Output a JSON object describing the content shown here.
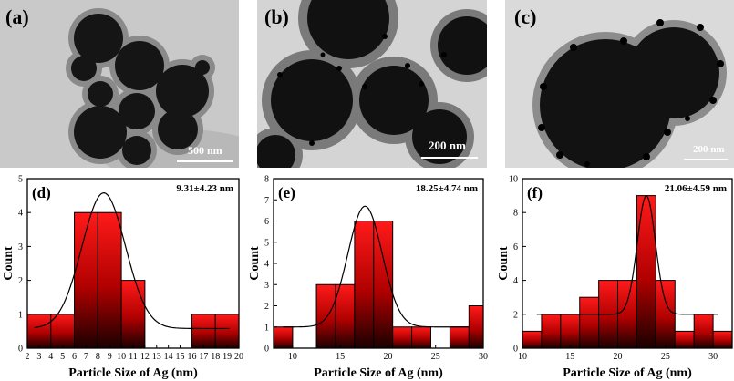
{
  "tem_panels": [
    {
      "label": "(a)",
      "scale": "500 nm"
    },
    {
      "label": "(b)",
      "scale": "200 nm"
    },
    {
      "label": "(c)",
      "scale": "200 nm"
    }
  ],
  "chart_data": [
    {
      "type": "bar",
      "panel_label": "(d)",
      "annotation": "9.31±4.23 nm",
      "xlabel": "Particle Size of Ag (nm)",
      "ylabel": "Count",
      "xlim": [
        2,
        20
      ],
      "ylim": [
        0,
        5
      ],
      "xticks": [
        2,
        3,
        4,
        5,
        6,
        7,
        8,
        9,
        10,
        11,
        12,
        13,
        14,
        15,
        16,
        17,
        18,
        19,
        20
      ],
      "yticks": [
        0,
        1,
        2,
        3,
        4,
        5
      ],
      "bars": [
        {
          "x0": 2,
          "x1": 4,
          "value": 1
        },
        {
          "x0": 4,
          "x1": 6,
          "value": 1
        },
        {
          "x0": 6,
          "x1": 8,
          "value": 4
        },
        {
          "x0": 8,
          "x1": 10,
          "value": 4
        },
        {
          "x0": 10,
          "x1": 12,
          "value": 2
        },
        {
          "x0": 16,
          "x1": 18,
          "value": 1
        },
        {
          "x0": 18,
          "x1": 20,
          "value": 1
        }
      ],
      "fit": {
        "mean": 8.5,
        "sigma": 1.85,
        "amplitude": 4.0,
        "baseline": 0.58,
        "x_start": 2.6,
        "x_end": 19.2
      }
    },
    {
      "type": "bar",
      "panel_label": "(e)",
      "annotation": "18.25±4.74 nm",
      "xlabel": "Particle Size of Ag (nm)",
      "ylabel": "Count",
      "xlim": [
        8,
        30
      ],
      "ylim": [
        0,
        8
      ],
      "xticks": [
        10,
        15,
        20,
        25,
        30
      ],
      "yticks": [
        0,
        1,
        2,
        3,
        4,
        5,
        6,
        7,
        8
      ],
      "bars": [
        {
          "x0": 8,
          "x1": 10,
          "value": 1
        },
        {
          "x0": 12.5,
          "x1": 14.5,
          "value": 3
        },
        {
          "x0": 14.5,
          "x1": 16.5,
          "value": 3
        },
        {
          "x0": 16.5,
          "x1": 18.5,
          "value": 6
        },
        {
          "x0": 18.5,
          "x1": 20.5,
          "value": 6
        },
        {
          "x0": 20.5,
          "x1": 22.5,
          "value": 1
        },
        {
          "x0": 22.5,
          "x1": 24.5,
          "value": 1
        },
        {
          "x0": 26.5,
          "x1": 28.5,
          "value": 1
        },
        {
          "x0": 28.5,
          "x1": 30,
          "value": 2
        }
      ],
      "fit": {
        "mean": 17.6,
        "sigma": 1.8,
        "amplitude": 5.7,
        "baseline": 1.0,
        "x_start": 9,
        "x_end": 28.5
      }
    },
    {
      "type": "bar",
      "panel_label": "(f)",
      "annotation": "21.06±4.59 nm",
      "xlabel": "Particle Size of Ag (nm)",
      "ylabel": "Count",
      "xlim": [
        10,
        32
      ],
      "ylim": [
        0,
        10
      ],
      "xticks": [
        10,
        15,
        20,
        25,
        30
      ],
      "yticks": [
        0,
        2,
        4,
        6,
        8,
        10
      ],
      "bars": [
        {
          "x0": 10,
          "x1": 12,
          "value": 1
        },
        {
          "x0": 12,
          "x1": 14,
          "value": 2
        },
        {
          "x0": 14,
          "x1": 16,
          "value": 2
        },
        {
          "x0": 16,
          "x1": 18,
          "value": 3
        },
        {
          "x0": 18,
          "x1": 20,
          "value": 4
        },
        {
          "x0": 20,
          "x1": 22,
          "value": 4
        },
        {
          "x0": 22,
          "x1": 24,
          "value": 9
        },
        {
          "x0": 24,
          "x1": 26,
          "value": 4
        },
        {
          "x0": 26,
          "x1": 28,
          "value": 1
        },
        {
          "x0": 28,
          "x1": 30,
          "value": 2
        },
        {
          "x0": 30,
          "x1": 32,
          "value": 1
        }
      ],
      "fit": {
        "mean": 23.0,
        "sigma": 0.95,
        "amplitude": 7.0,
        "baseline": 2.0,
        "x_start": 11.5,
        "x_end": 30.5
      }
    }
  ]
}
